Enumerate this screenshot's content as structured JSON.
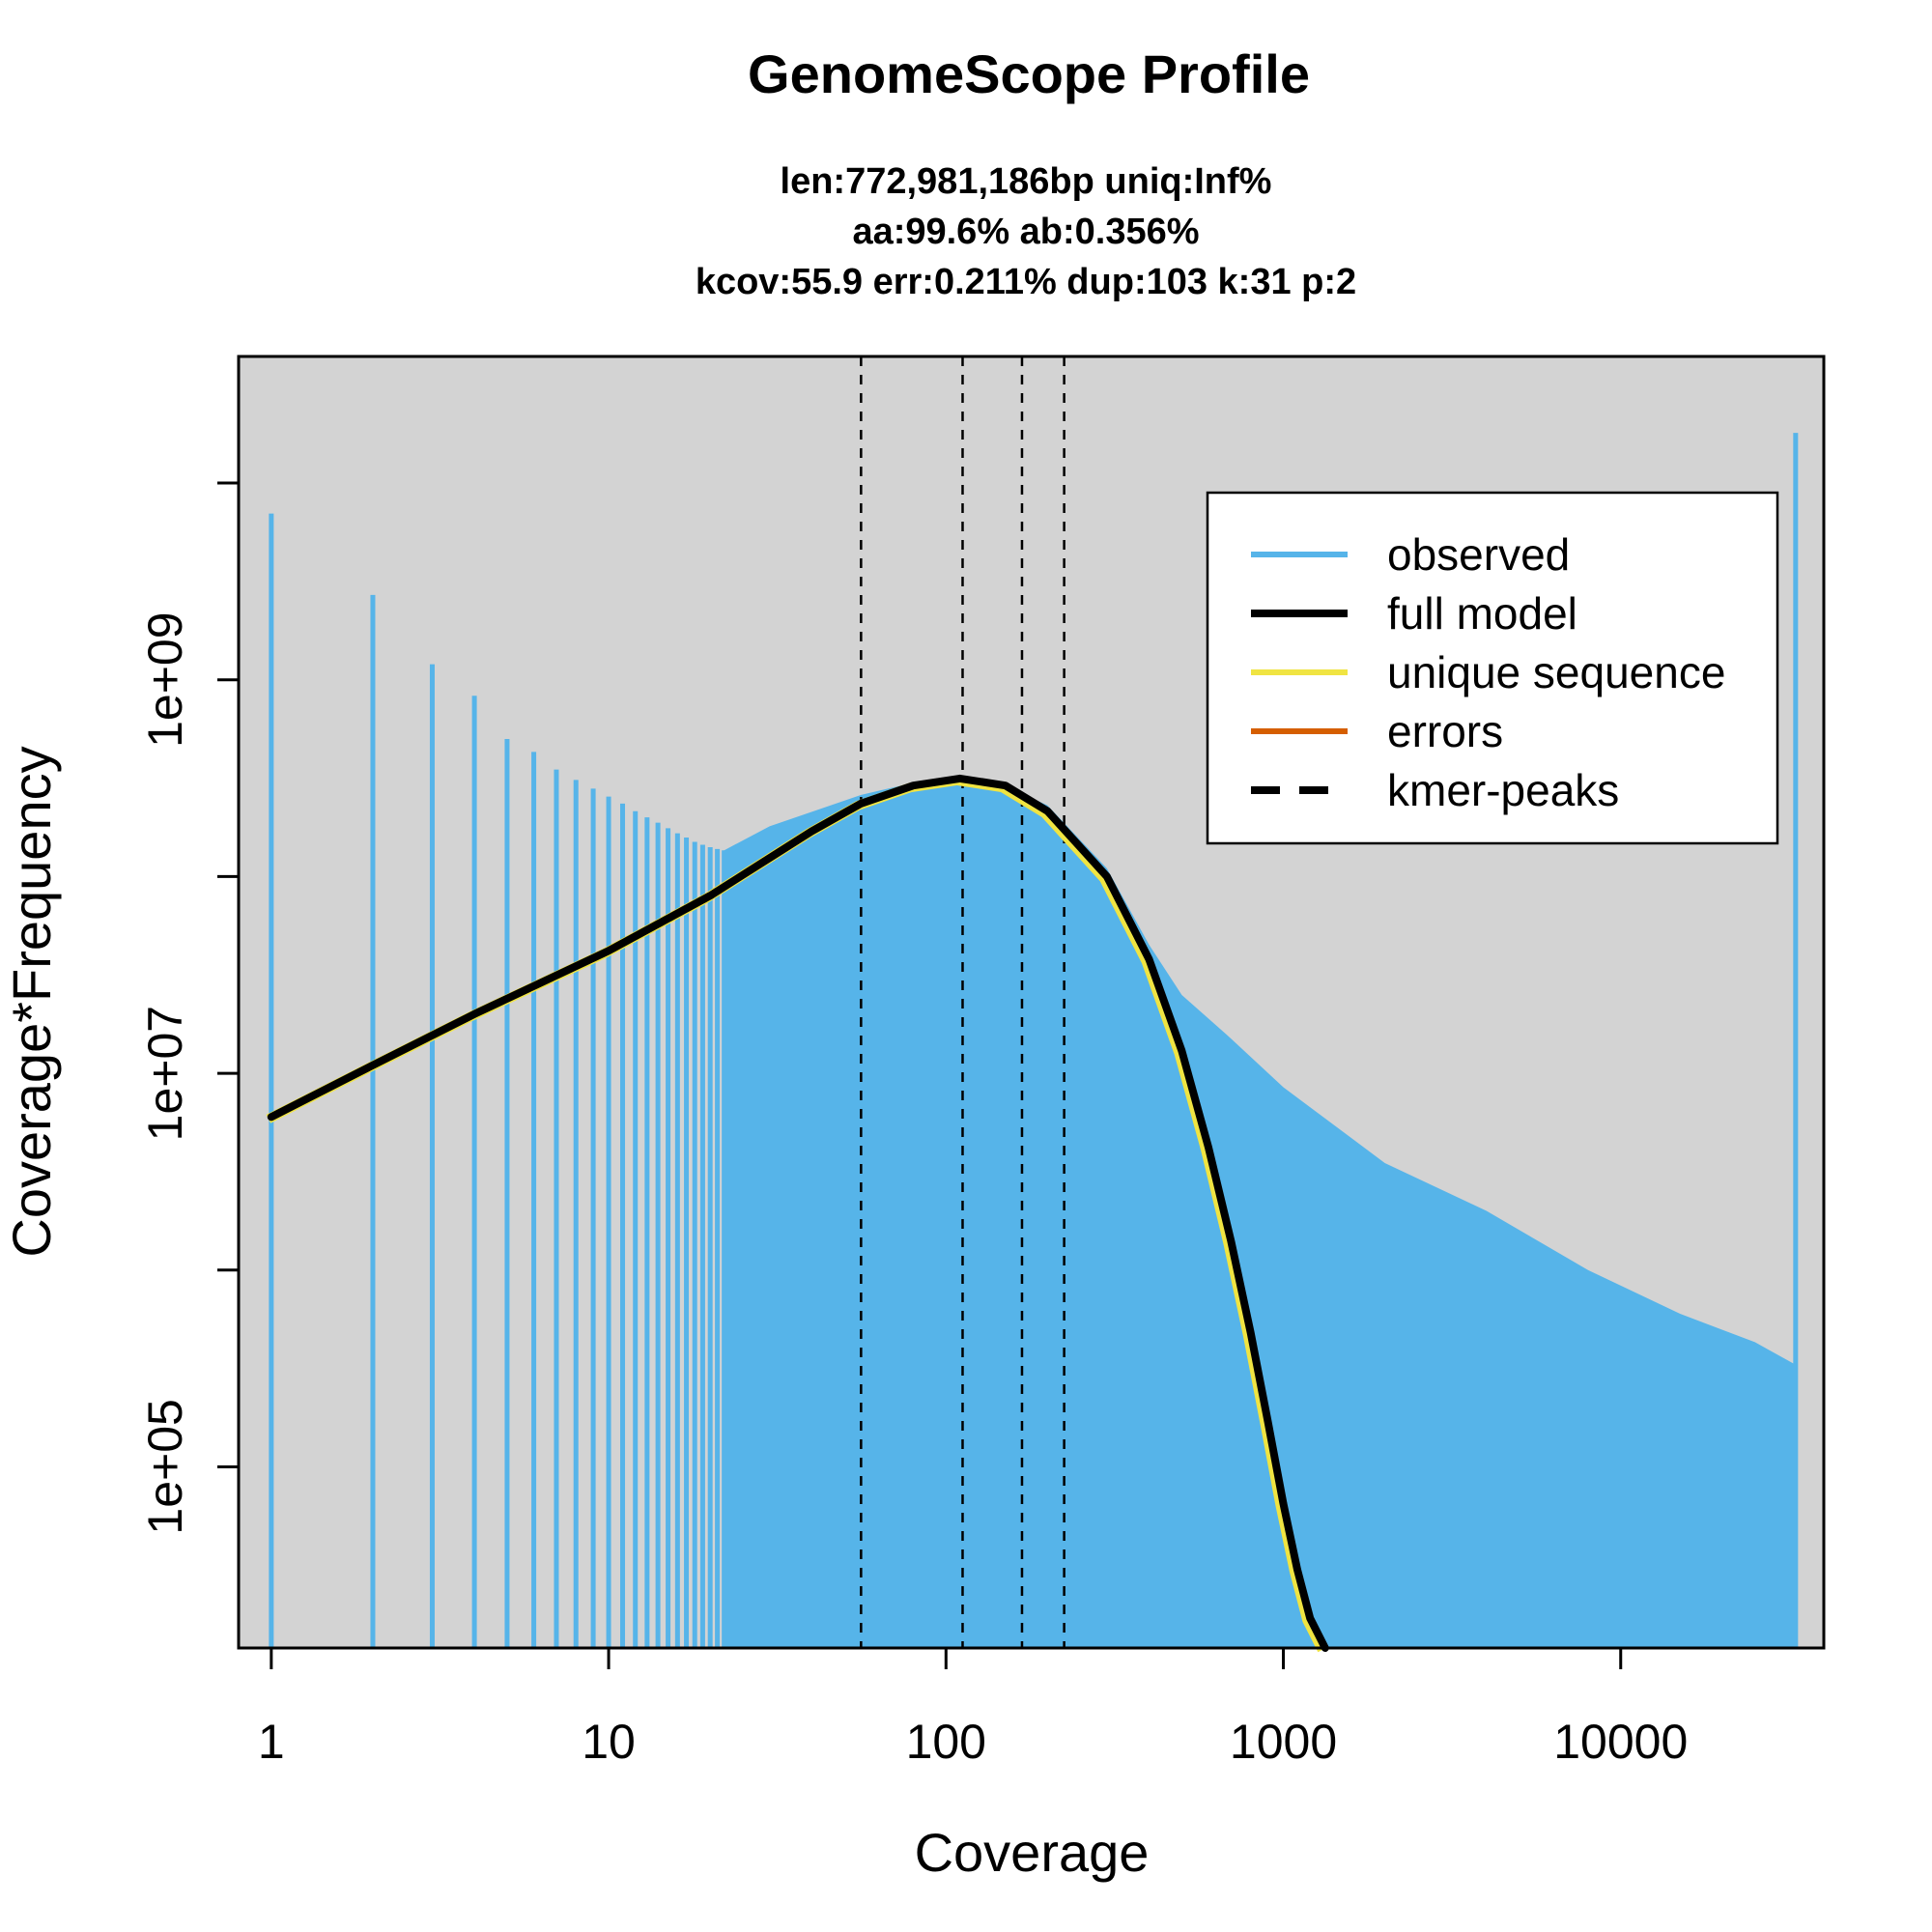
{
  "chart_data": {
    "type": "bar",
    "title": "GenomeScope Profile",
    "subtitle_lines": [
      "len:772,981,186bp uniq:Inf%",
      "aa:99.6% ab:0.356%",
      "kcov:55.9 err:0.211%  dup:103  k:31 p:2"
    ],
    "xlabel": "Coverage",
    "ylabel": "Coverage*Frequency",
    "x_scale": "log",
    "y_scale": "log",
    "xlim": [
      0.8,
      40000
    ],
    "ylim": [
      12000,
      44000000000
    ],
    "x_ticks": [
      1,
      10,
      100,
      1000,
      10000
    ],
    "x_tick_labels": [
      "1",
      "10",
      "100",
      "1000",
      "10000"
    ],
    "y_ticks": [
      100000,
      1000000,
      10000000,
      100000000,
      1000000000,
      10000000000
    ],
    "y_tick_labels": [
      "1e+05",
      "",
      "1e+07",
      "",
      "1e+09",
      ""
    ],
    "grid": false,
    "legend_position": "top-right",
    "legend": [
      {
        "label": "observed",
        "color": "#56B4E9",
        "style": "solid"
      },
      {
        "label": "full model",
        "color": "#000000",
        "style": "solid-thick"
      },
      {
        "label": "unique sequence",
        "color": "#F0E442",
        "style": "solid"
      },
      {
        "label": "errors",
        "color": "#D55E00",
        "style": "solid"
      },
      {
        "label": "kmer-peaks",
        "color": "#000000",
        "style": "dashed"
      }
    ],
    "observed_discrete": [
      [
        1,
        7000000000
      ],
      [
        2,
        2700000000
      ],
      [
        3,
        1200000000
      ],
      [
        4,
        830000000
      ],
      [
        5,
        500000000
      ],
      [
        6,
        430000000
      ],
      [
        7,
        350000000
      ],
      [
        8,
        310000000
      ],
      [
        9,
        280000000
      ],
      [
        10,
        255000000
      ],
      [
        11,
        235000000
      ],
      [
        12,
        215000000
      ],
      [
        13,
        200000000
      ],
      [
        14,
        188000000
      ],
      [
        15,
        176000000
      ],
      [
        16,
        166000000
      ],
      [
        17,
        158000000
      ],
      [
        18,
        150000000
      ],
      [
        19,
        145000000
      ],
      [
        20,
        141000000
      ],
      [
        21,
        138000000
      ],
      [
        22,
        136000000
      ]
    ],
    "observed_envelope": [
      [
        22,
        136000000
      ],
      [
        30,
        180000000
      ],
      [
        56,
        260000000
      ],
      [
        80,
        300000000
      ],
      [
        100,
        315000000
      ],
      [
        150,
        290000000
      ],
      [
        200,
        230000000
      ],
      [
        300,
        110000000
      ],
      [
        400,
        45000000
      ],
      [
        500,
        25000000
      ],
      [
        700,
        15000000
      ],
      [
        1000,
        8500000
      ],
      [
        2000,
        3500000
      ],
      [
        4000,
        2000000
      ],
      [
        8000,
        1000000
      ],
      [
        15000,
        600000
      ],
      [
        25000,
        430000
      ],
      [
        33000,
        330000
      ]
    ],
    "observed_spike": [
      33000,
      18000000000
    ],
    "full_model": [
      [
        1,
        6000000
      ],
      [
        2,
        11000000
      ],
      [
        4,
        20000000
      ],
      [
        10,
        42000000
      ],
      [
        20,
        80000000
      ],
      [
        40,
        170000000
      ],
      [
        56,
        235000000
      ],
      [
        80,
        290000000
      ],
      [
        110,
        315000000
      ],
      [
        150,
        290000000
      ],
      [
        200,
        215000000
      ],
      [
        300,
        100000000
      ],
      [
        400,
        38000000
      ],
      [
        500,
        13000000
      ],
      [
        600,
        4200000
      ],
      [
        700,
        1400000
      ],
      [
        800,
        480000
      ],
      [
        900,
        170000
      ],
      [
        1000,
        65000
      ],
      [
        1100,
        30000
      ],
      [
        1200,
        17000
      ],
      [
        1330,
        12000
      ]
    ],
    "kmer_peaks": [
      56,
      112,
      168,
      224
    ]
  }
}
